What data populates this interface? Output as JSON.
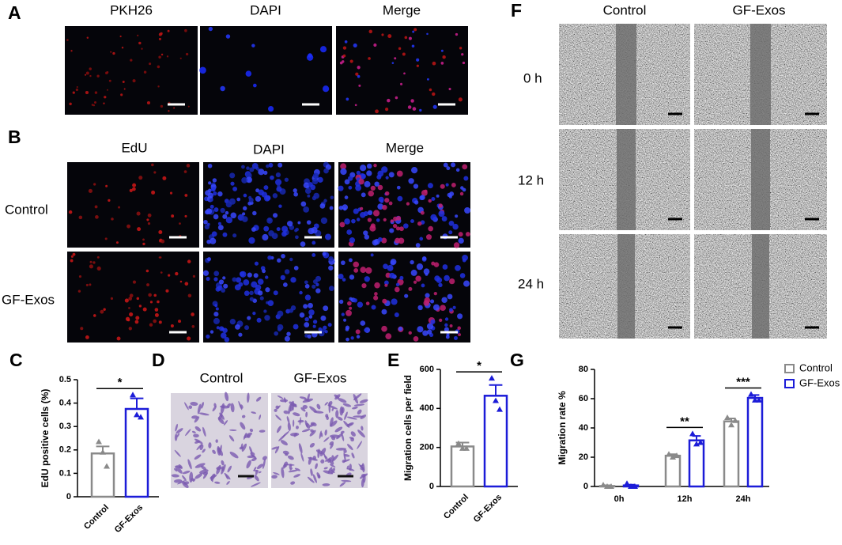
{
  "panels": {
    "A": {
      "label": "A",
      "columns": [
        "PKH26",
        "DAPI",
        "Merge"
      ]
    },
    "B": {
      "label": "B",
      "columns": [
        "EdU",
        "DAPI",
        "Merge"
      ],
      "rows": [
        "Control",
        "GF-Exos"
      ]
    },
    "D": {
      "label": "D",
      "columns": [
        "Control",
        "GF-Exos"
      ]
    },
    "F": {
      "label": "F",
      "columns": [
        "Control",
        "GF-Exos"
      ],
      "rows": [
        "0 h",
        "12 h",
        "24 h"
      ]
    }
  },
  "chart_data": [
    {
      "type": "bar",
      "panel_label": "C",
      "ylabel": "EdU positive cells (%)",
      "categories": [
        "Control",
        "GF-Exos"
      ],
      "colors": [
        "#8a8a8a",
        "#1c1cd8"
      ],
      "values": [
        0.185,
        0.375
      ],
      "errors": [
        0.03,
        0.045
      ],
      "points": [
        [
          0.235,
          0.19,
          0.13
        ],
        [
          0.435,
          0.35,
          0.34
        ]
      ],
      "significance": "*",
      "ylim": [
        0,
        0.5
      ],
      "yticks": [
        0,
        0.1,
        0.2,
        0.3,
        0.4,
        0.5
      ]
    },
    {
      "type": "bar",
      "panel_label": "E",
      "ylabel": "Migration cells per field",
      "categories": [
        "Control",
        "GF-Exos"
      ],
      "colors": [
        "#8a8a8a",
        "#1c1cd8"
      ],
      "values": [
        205,
        465
      ],
      "errors": [
        20,
        55
      ],
      "points": [
        [
          220,
          195,
          195
        ],
        [
          555,
          440,
          395
        ]
      ],
      "significance": "*",
      "ylim": [
        0,
        600
      ],
      "yticks": [
        0,
        200,
        400,
        600
      ]
    },
    {
      "type": "grouped_bar",
      "panel_label": "G",
      "ylabel": "Migration rate %",
      "categories": [
        "0h",
        "12h",
        "24h"
      ],
      "series": [
        {
          "name": "Control",
          "color": "#8a8a8a",
          "values": [
            0.3,
            21,
            44.5
          ],
          "errors": [
            0.5,
            1,
            2
          ],
          "points": [
            [
              1,
              0,
              0
            ],
            [
              22,
              20,
              21
            ],
            [
              47,
              42,
              45
            ]
          ]
        },
        {
          "name": "GF-Exos",
          "color": "#1c1cd8",
          "values": [
            0.7,
            31.5,
            60.5
          ],
          "errors": [
            0.5,
            3,
            2
          ],
          "points": [
            [
              2,
              0,
              0
            ],
            [
              36,
              29,
              30
            ],
            [
              63,
              59,
              59
            ]
          ]
        }
      ],
      "significance": [
        null,
        "**",
        "***"
      ],
      "ylim": [
        0,
        80
      ],
      "yticks": [
        0,
        20,
        40,
        60,
        80
      ],
      "legend": "top-right"
    }
  ]
}
